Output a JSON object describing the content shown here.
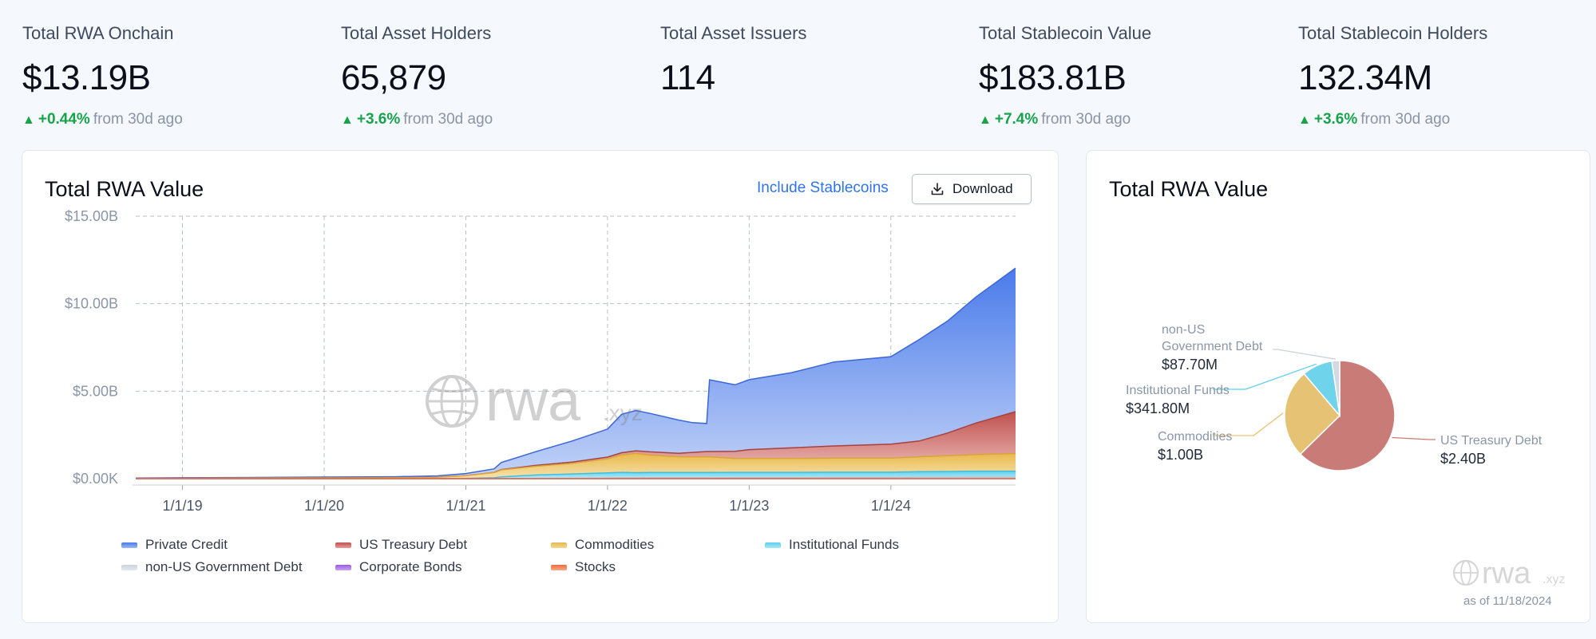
{
  "stats": [
    {
      "label": "Total RWA Onchain",
      "value": "$13.19B",
      "delta": "+0.44%",
      "delta_suffix": "from 30d ago"
    },
    {
      "label": "Total Asset Holders",
      "value": "65,879",
      "delta": "+3.6%",
      "delta_suffix": "from 30d ago"
    },
    {
      "label": "Total Asset Issuers",
      "value": "114",
      "delta": "",
      "delta_suffix": ""
    },
    {
      "label": "Total Stablecoin Value",
      "value": "$183.81B",
      "delta": "+7.4%",
      "delta_suffix": "from 30d ago"
    },
    {
      "label": "Total Stablecoin Holders",
      "value": "132.34M",
      "delta": "+3.6%",
      "delta_suffix": "from 30d ago"
    }
  ],
  "area_card": {
    "title": "Total RWA Value",
    "include_stablecoins_label": "Include Stablecoins",
    "download_label": "Download",
    "watermark": "rwa",
    "watermark_suffix": ".xyz"
  },
  "pie_card": {
    "title": "Total RWA Value",
    "watermark": "rwa",
    "watermark_suffix": ".xyz",
    "as_of": "as of 11/18/2024"
  },
  "colors": {
    "private_credit": "#4a7bea",
    "us_treasury": "#c0504d",
    "commodities": "#e6b84f",
    "institutional": "#5bd0ec",
    "non_us_gov": "#c9d3df",
    "corporate_bonds": "#9b59e6",
    "stocks": "#ef6a3a",
    "accent_green": "#16a34a",
    "accent_blue": "#2f74e8"
  },
  "chart_data": [
    {
      "type": "area",
      "stacked": true,
      "title": "Total RWA Value",
      "x_labels": [
        "1/1/19",
        "1/1/20",
        "1/1/21",
        "1/1/22",
        "1/1/23",
        "1/1/24"
      ],
      "y_ticks": [
        "$0.00K",
        "$5.00B",
        "$10.00B",
        "$15.00B"
      ],
      "ylim": [
        0,
        15
      ],
      "y_unit": "$B",
      "xlim": [
        2018.67,
        2024.88
      ],
      "grid": true,
      "legend_position": "bottom",
      "x": [
        2018.67,
        2019.0,
        2019.5,
        2020.0,
        2020.5,
        2020.8,
        2021.0,
        2021.2,
        2021.25,
        2021.5,
        2021.75,
        2022.0,
        2022.1,
        2022.2,
        2022.3,
        2022.5,
        2022.6,
        2022.7,
        2022.72,
        2022.9,
        2023.0,
        2023.3,
        2023.6,
        2024.0,
        2024.2,
        2024.4,
        2024.6,
        2024.88
      ],
      "series": [
        {
          "name": "Private Credit",
          "values": [
            0.02,
            0.03,
            0.04,
            0.05,
            0.06,
            0.08,
            0.12,
            0.2,
            0.4,
            0.8,
            1.2,
            1.6,
            2.2,
            2.3,
            2.2,
            1.9,
            1.7,
            1.6,
            4.1,
            3.8,
            4.0,
            4.3,
            4.8,
            5.0,
            5.8,
            6.4,
            7.2,
            8.2
          ]
        },
        {
          "name": "US Treasury Debt",
          "values": [
            0,
            0,
            0,
            0,
            0,
            0,
            0,
            0.01,
            0.02,
            0.05,
            0.08,
            0.1,
            0.12,
            0.15,
            0.18,
            0.2,
            0.25,
            0.3,
            0.3,
            0.4,
            0.5,
            0.6,
            0.7,
            0.8,
            0.9,
            1.3,
            1.8,
            2.4
          ]
        },
        {
          "name": "Commodities",
          "values": [
            0.01,
            0.02,
            0.03,
            0.04,
            0.05,
            0.08,
            0.15,
            0.3,
            0.4,
            0.5,
            0.6,
            0.8,
            1.0,
            1.1,
            1.0,
            0.9,
            0.9,
            0.9,
            0.9,
            0.8,
            0.8,
            0.8,
            0.8,
            0.8,
            0.85,
            0.9,
            0.95,
            1.0
          ]
        },
        {
          "name": "Institutional Funds",
          "values": [
            0,
            0,
            0,
            0,
            0,
            0,
            0.02,
            0.05,
            0.1,
            0.2,
            0.25,
            0.3,
            0.32,
            0.3,
            0.3,
            0.3,
            0.3,
            0.3,
            0.3,
            0.3,
            0.3,
            0.3,
            0.3,
            0.3,
            0.32,
            0.33,
            0.34,
            0.34
          ]
        },
        {
          "name": "non-US Government Debt",
          "values": [
            0,
            0,
            0,
            0,
            0,
            0,
            0,
            0,
            0,
            0.01,
            0.02,
            0.03,
            0.04,
            0.04,
            0.05,
            0.05,
            0.05,
            0.05,
            0.05,
            0.06,
            0.06,
            0.06,
            0.07,
            0.07,
            0.08,
            0.08,
            0.09,
            0.09
          ]
        },
        {
          "name": "Corporate Bonds",
          "values": [
            0,
            0,
            0,
            0,
            0,
            0,
            0,
            0,
            0,
            0,
            0,
            0,
            0,
            0,
            0,
            0,
            0,
            0,
            0,
            0,
            0,
            0,
            0,
            0,
            0,
            0,
            0,
            0
          ]
        },
        {
          "name": "Stocks",
          "values": [
            0,
            0,
            0,
            0,
            0,
            0,
            0,
            0,
            0,
            0,
            0,
            0,
            0,
            0,
            0,
            0,
            0,
            0,
            0,
            0,
            0,
            0,
            0,
            0,
            0,
            0,
            0,
            0
          ]
        }
      ]
    },
    {
      "type": "pie",
      "title": "Total RWA Value",
      "slices": [
        {
          "name": "US Treasury Debt",
          "label_lines": [
            "US Treasury Debt"
          ],
          "value_label": "$2.40B",
          "value": 2.4,
          "color": "#c97b78"
        },
        {
          "name": "Commodities",
          "label_lines": [
            "Commodities"
          ],
          "value_label": "$1.00B",
          "value": 1.0,
          "color": "#e6c374"
        },
        {
          "name": "Institutional Funds",
          "label_lines": [
            "Institutional Funds"
          ],
          "value_label": "$341.80M",
          "value": 0.3418,
          "color": "#6fd3ec"
        },
        {
          "name": "non-US Government Debt",
          "label_lines": [
            "non-US",
            "Government Debt"
          ],
          "value_label": "$87.70M",
          "value": 0.0877,
          "color": "#d2d9e2"
        }
      ]
    }
  ]
}
